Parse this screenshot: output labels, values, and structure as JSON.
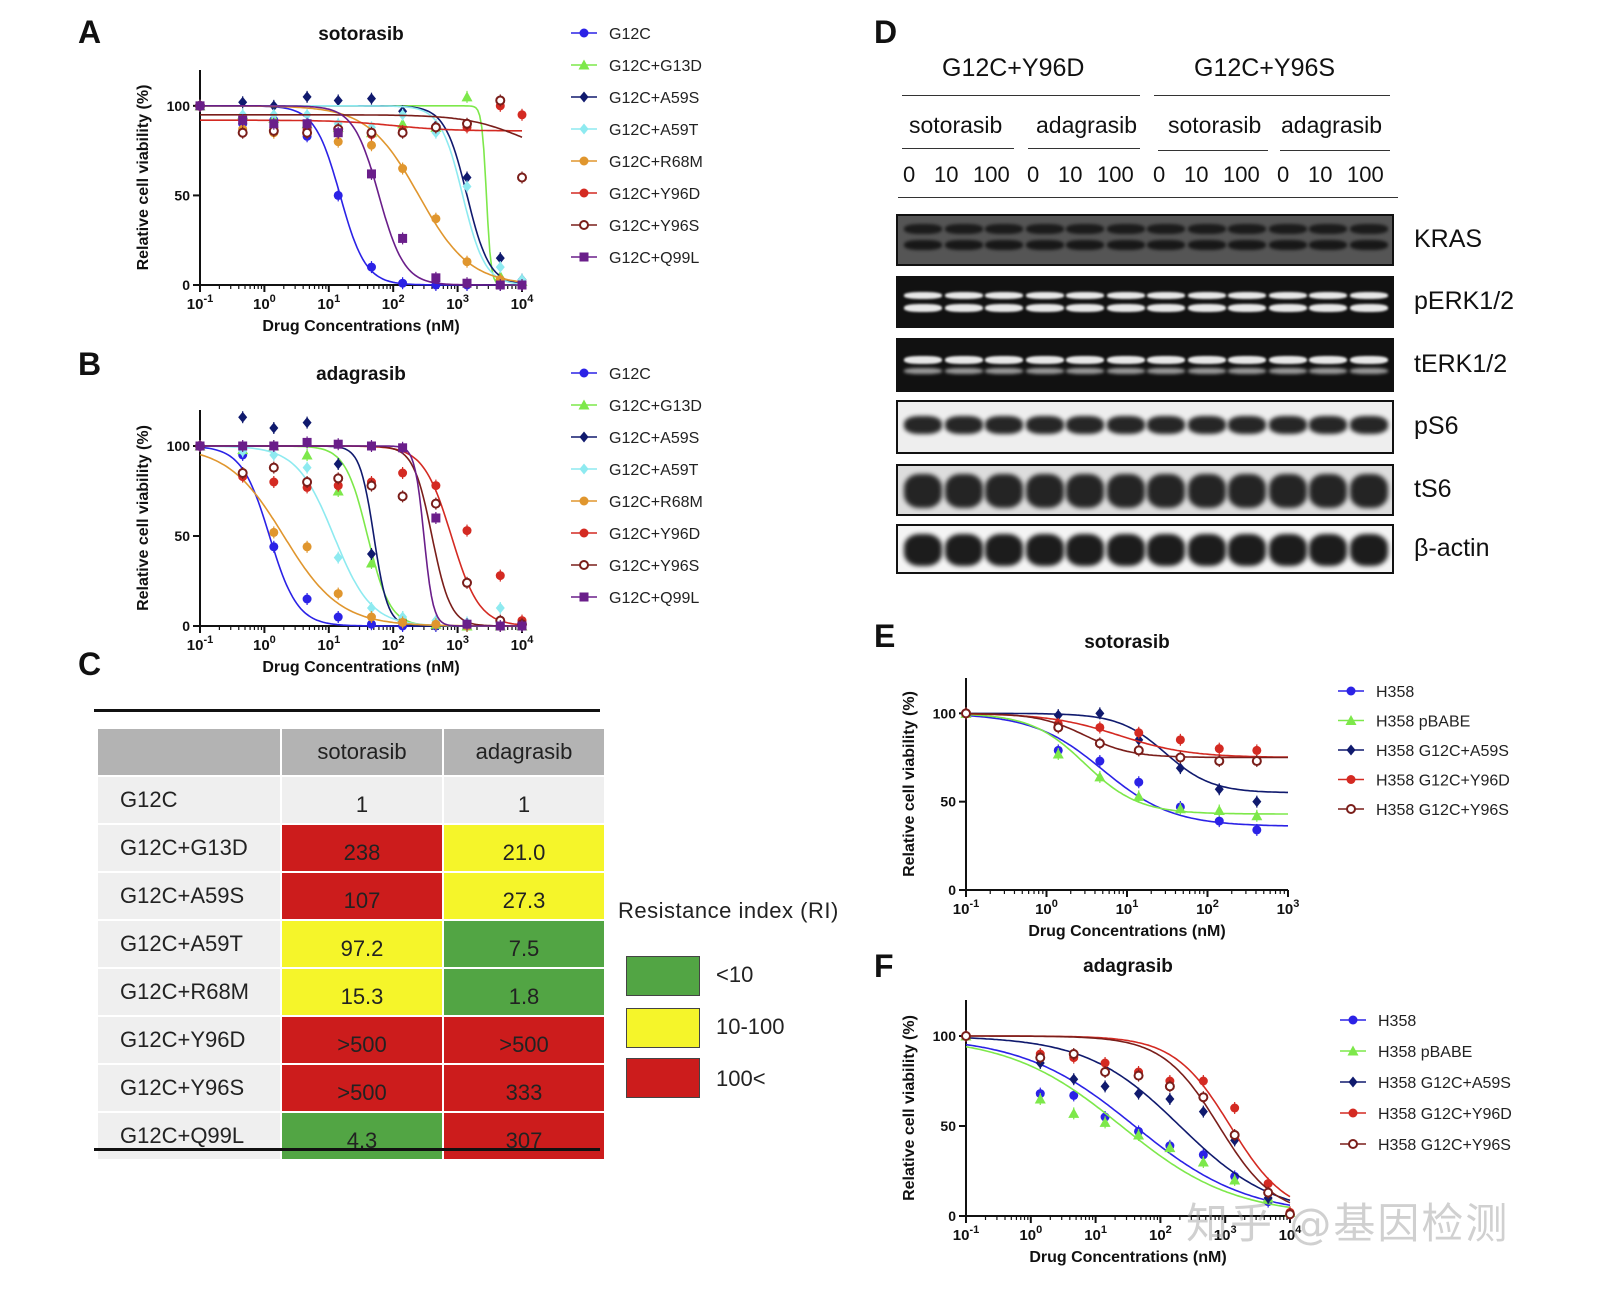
{
  "panels": {
    "A": "A",
    "B": "B",
    "C": "C",
    "D": "D",
    "E": "E",
    "F": "F"
  },
  "colors": {
    "G12C": "#2b22e6",
    "G12C+G13D": "#7de84a",
    "G12C+A59S": "#101a6e",
    "G12C+A59T": "#8eeaf0",
    "G12C+R68M": "#e0962e",
    "G12C+Y96D": "#d42a22",
    "G12C+Y96S": "#7a1e1a",
    "G12C+Q99L": "#6a1e8a",
    "H358": "#2b22e6",
    "H358 pBABE": "#7de84a",
    "H358 G12C+A59S": "#101a6e",
    "H358 G12C+Y96D": "#d42a22",
    "H358 G12C+Y96S": "#7a1e1a",
    "ri_green": "#52a544",
    "ri_yellow": "#f5f52a",
    "ri_red": "#cc1c1c"
  },
  "chart_data": [
    {
      "id": "A",
      "type": "line",
      "title": "sotorasib",
      "xlabel": "Drug Concentrations (nM)",
      "ylabel": "Relative cell viability (%)",
      "xscale": "log",
      "xlim": [
        0.1,
        10000
      ],
      "ylim": [
        0,
        120
      ],
      "xticks": [
        0.1,
        1,
        10,
        100,
        1000,
        10000
      ],
      "yticks": [
        0,
        50,
        100
      ],
      "legend_position": "right",
      "series": [
        {
          "name": "G12C",
          "marker": "circle",
          "top": 100,
          "bottom": 0,
          "ic50": 15,
          "hill": 2.2,
          "x": [
            0.1,
            0.46,
            1.4,
            4.6,
            14,
            46,
            140,
            460,
            1400,
            4600,
            10000
          ],
          "y": [
            100,
            90,
            92,
            83,
            50,
            10,
            1,
            0,
            0,
            0,
            0
          ]
        },
        {
          "name": "G12C+G13D",
          "marker": "triangle",
          "top": 100,
          "bottom": 0,
          "ic50": 2800,
          "hill": 12,
          "x": [
            0.1,
            0.46,
            1.4,
            4.6,
            14,
            46,
            140,
            460,
            1400,
            4600,
            10000
          ],
          "y": [
            100,
            95,
            93,
            90,
            88,
            85,
            90,
            88,
            105,
            5,
            2
          ]
        },
        {
          "name": "G12C+A59S",
          "marker": "diamond",
          "top": 100,
          "bottom": 0,
          "ic50": 1400,
          "hill": 2.5,
          "x": [
            0.1,
            0.46,
            1.4,
            4.6,
            14,
            46,
            140,
            460,
            1400,
            4600,
            10000
          ],
          "y": [
            100,
            102,
            100,
            105,
            103,
            104,
            97,
            89,
            60,
            15,
            3
          ]
        },
        {
          "name": "G12C+A59T",
          "marker": "diamond",
          "top": 100,
          "bottom": 0,
          "ic50": 1200,
          "hill": 2.5,
          "x": [
            0.1,
            0.46,
            1.4,
            4.6,
            14,
            46,
            140,
            460,
            1400,
            4600,
            10000
          ],
          "y": [
            100,
            95,
            95,
            95,
            90,
            88,
            95,
            85,
            55,
            10,
            3
          ]
        },
        {
          "name": "G12C+R68M",
          "marker": "circle",
          "top": 100,
          "bottom": 0,
          "ic50": 250,
          "hill": 1.1,
          "x": [
            0.1,
            0.46,
            1.4,
            4.6,
            14,
            46,
            140,
            460,
            1400,
            4600,
            10000
          ],
          "y": [
            100,
            87,
            85,
            85,
            80,
            78,
            65,
            37,
            13,
            3,
            0
          ]
        },
        {
          "name": "G12C+Y96D",
          "marker": "circle",
          "top": 92,
          "bottom": 86,
          "ic50": 100,
          "hill": 1,
          "x": [
            0.1,
            0.46,
            1.4,
            4.6,
            14,
            46,
            140,
            460,
            1400,
            4600,
            10000
          ],
          "y": [
            100,
            92,
            88,
            87,
            85,
            84,
            86,
            88,
            88,
            100,
            95
          ]
        },
        {
          "name": "G12C+Y96S",
          "marker": "open-circle",
          "top": 95,
          "bottom": 70,
          "ic50": 10000,
          "hill": 1,
          "x": [
            0.1,
            0.46,
            1.4,
            4.6,
            14,
            46,
            140,
            460,
            1400,
            4600,
            10000
          ],
          "y": [
            100,
            85,
            86,
            85,
            87,
            85,
            85,
            88,
            90,
            103,
            60
          ]
        },
        {
          "name": "G12C+Q99L",
          "marker": "square",
          "top": 100,
          "bottom": 0,
          "ic50": 60,
          "hill": 2.2,
          "x": [
            0.1,
            0.46,
            1.4,
            4.6,
            14,
            46,
            140,
            460,
            1400,
            4600,
            10000
          ],
          "y": [
            100,
            92,
            90,
            90,
            85,
            62,
            26,
            4,
            1,
            0,
            0
          ]
        }
      ]
    },
    {
      "id": "B",
      "type": "line",
      "title": "adagrasib",
      "xlabel": "Drug Concentrations (nM)",
      "ylabel": "Relative cell viability (%)",
      "xscale": "log",
      "xlim": [
        0.1,
        10000
      ],
      "ylim": [
        0,
        120
      ],
      "xticks": [
        0.1,
        1,
        10,
        100,
        1000,
        10000
      ],
      "yticks": [
        0,
        50,
        100
      ],
      "legend_position": "right",
      "series": [
        {
          "name": "G12C",
          "marker": "circle",
          "top": 100,
          "bottom": 0,
          "ic50": 1.2,
          "hill": 2,
          "x": [
            0.1,
            0.46,
            1.4,
            4.6,
            14,
            46,
            140,
            460,
            1400,
            4600,
            10000
          ],
          "y": [
            100,
            95,
            44,
            15,
            5,
            1,
            0,
            0,
            0,
            0,
            0
          ]
        },
        {
          "name": "G12C+G13D",
          "marker": "triangle",
          "top": 100,
          "bottom": 0,
          "ic50": 40,
          "hill": 2.5,
          "x": [
            0.1,
            0.46,
            1.4,
            4.6,
            14,
            46,
            140,
            460,
            1400,
            4600,
            10000
          ],
          "y": [
            100,
            98,
            100,
            95,
            75,
            35,
            5,
            1,
            0,
            0,
            0
          ]
        },
        {
          "name": "G12C+A59S",
          "marker": "diamond",
          "top": 100,
          "bottom": 0,
          "ic50": 50,
          "hill": 4,
          "x": [
            0.1,
            0.46,
            1.4,
            4.6,
            14,
            46,
            140,
            460,
            1400,
            4600,
            10000
          ],
          "y": [
            100,
            116,
            110,
            113,
            90,
            40,
            3,
            1,
            0,
            0,
            0
          ]
        },
        {
          "name": "G12C+A59T",
          "marker": "diamond",
          "top": 100,
          "bottom": 0,
          "ic50": 12,
          "hill": 1.5,
          "x": [
            0.1,
            0.46,
            1.4,
            4.6,
            14,
            46,
            140,
            460,
            1400,
            4600,
            10000
          ],
          "y": [
            100,
            97,
            95,
            88,
            38,
            10,
            5,
            3,
            2,
            10,
            2
          ]
        },
        {
          "name": "G12C+R68M",
          "marker": "circle",
          "top": 100,
          "bottom": 0,
          "ic50": 2,
          "hill": 1,
          "x": [
            0.1,
            0.46,
            1.4,
            4.6,
            14,
            46,
            140,
            460,
            1400,
            4600,
            10000
          ],
          "y": [
            100,
            85,
            52,
            44,
            18,
            5,
            2,
            1,
            0,
            0,
            0
          ]
        },
        {
          "name": "G12C+Y96D",
          "marker": "circle",
          "top": 100,
          "bottom": 0,
          "ic50": 800,
          "hill": 2,
          "x": [
            0.1,
            0.46,
            1.4,
            4.6,
            14,
            46,
            140,
            460,
            1400,
            4600,
            10000
          ],
          "y": [
            100,
            83,
            80,
            77,
            78,
            80,
            85,
            78,
            53,
            28,
            3
          ]
        },
        {
          "name": "G12C+Y96S",
          "marker": "open-circle",
          "top": 100,
          "bottom": 0,
          "ic50": 400,
          "hill": 3,
          "x": [
            0.1,
            0.46,
            1.4,
            4.6,
            14,
            46,
            140,
            460,
            1400,
            4600,
            10000
          ],
          "y": [
            100,
            85,
            88,
            80,
            82,
            78,
            72,
            68,
            24,
            3,
            1
          ]
        },
        {
          "name": "G12C+Q99L",
          "marker": "square",
          "top": 100,
          "bottom": 0,
          "ic50": 300,
          "hill": 6,
          "x": [
            0.1,
            0.46,
            1.4,
            4.6,
            14,
            46,
            140,
            460,
            1400,
            4600,
            10000
          ],
          "y": [
            100,
            100,
            100,
            102,
            101,
            100,
            99,
            60,
            1,
            0,
            0
          ]
        }
      ]
    },
    {
      "id": "E",
      "type": "line",
      "title": "sotorasib",
      "xlabel": "Drug Concentrations (nM)",
      "ylabel": "Relative cell viability (%)",
      "xscale": "log",
      "xlim": [
        0.1,
        1000
      ],
      "ylim": [
        0,
        120
      ],
      "xticks": [
        0.1,
        1,
        10,
        100,
        1000
      ],
      "yticks": [
        0,
        50,
        100
      ],
      "legend_position": "right",
      "series": [
        {
          "name": "H358",
          "marker": "circle",
          "top": 100,
          "bottom": 36,
          "ic50": 5,
          "hill": 1,
          "x": [
            0.1,
            1.4,
            4.6,
            14,
            46,
            140,
            410
          ],
          "y": [
            100,
            79,
            73,
            61,
            47,
            39,
            34
          ]
        },
        {
          "name": "H358 pBABE",
          "marker": "triangle",
          "top": 100,
          "bottom": 43,
          "ic50": 3,
          "hill": 1.3,
          "x": [
            0.1,
            1.4,
            4.6,
            14,
            46,
            140,
            410
          ],
          "y": [
            100,
            77,
            64,
            53,
            46,
            45,
            42
          ]
        },
        {
          "name": "H358 G12C+A59S",
          "marker": "diamond",
          "top": 100,
          "bottom": 55,
          "ic50": 30,
          "hill": 1.5,
          "x": [
            0.1,
            1.4,
            4.6,
            14,
            46,
            140,
            410
          ],
          "y": [
            100,
            99,
            100,
            85,
            69,
            57,
            50
          ]
        },
        {
          "name": "H358 G12C+Y96D",
          "marker": "circle",
          "top": 100,
          "bottom": 75,
          "ic50": 8,
          "hill": 1,
          "x": [
            0.1,
            1.4,
            4.6,
            14,
            46,
            140,
            410
          ],
          "y": [
            100,
            94,
            92,
            89,
            85,
            80,
            79
          ]
        },
        {
          "name": "H358 G12C+Y96S",
          "marker": "open-circle",
          "top": 100,
          "bottom": 75,
          "ic50": 3,
          "hill": 1.5,
          "x": [
            0.1,
            1.4,
            4.6,
            14,
            46,
            140,
            410
          ],
          "y": [
            100,
            92,
            83,
            79,
            75,
            73,
            73
          ]
        }
      ]
    },
    {
      "id": "F",
      "type": "line",
      "title": "adagrasib",
      "xlabel": "Drug Concentrations (nM)",
      "ylabel": "Relative cell viability (%)",
      "xscale": "log",
      "xlim": [
        0.1,
        10000
      ],
      "ylim": [
        0,
        120
      ],
      "xticks": [
        0.1,
        1,
        10,
        100,
        1000,
        10000
      ],
      "yticks": [
        0,
        50,
        100
      ],
      "legend_position": "right",
      "series": [
        {
          "name": "H358",
          "marker": "circle",
          "top": 100,
          "bottom": 0,
          "ic50": 40,
          "hill": 0.5,
          "x": [
            0.1,
            1.4,
            4.6,
            14,
            46,
            140,
            460,
            1400,
            4600,
            10000
          ],
          "y": [
            100,
            68,
            67,
            55,
            47,
            39,
            34,
            22,
            8,
            1
          ]
        },
        {
          "name": "H358 pBABE",
          "marker": "triangle",
          "top": 100,
          "bottom": 0,
          "ic50": 25,
          "hill": 0.5,
          "x": [
            0.1,
            1.4,
            4.6,
            14,
            46,
            140,
            460,
            1400,
            4600,
            10000
          ],
          "y": [
            100,
            65,
            57,
            52,
            45,
            38,
            30,
            20,
            10,
            2
          ]
        },
        {
          "name": "H358 G12C+A59S",
          "marker": "diamond",
          "top": 100,
          "bottom": 0,
          "ic50": 200,
          "hill": 0.6,
          "x": [
            0.1,
            1.4,
            4.6,
            14,
            46,
            140,
            460,
            1400,
            4600,
            10000
          ],
          "y": [
            100,
            85,
            76,
            72,
            68,
            65,
            58,
            42,
            10,
            1
          ]
        },
        {
          "name": "H358 G12C+Y96D",
          "marker": "circle",
          "top": 100,
          "bottom": 0,
          "ic50": 1200,
          "hill": 1,
          "x": [
            0.1,
            1.4,
            4.6,
            14,
            46,
            140,
            460,
            1400,
            4600,
            10000
          ],
          "y": [
            100,
            90,
            88,
            85,
            80,
            75,
            75,
            60,
            18,
            2
          ]
        },
        {
          "name": "H358 G12C+Y96S",
          "marker": "open-circle",
          "top": 100,
          "bottom": 0,
          "ic50": 800,
          "hill": 1,
          "x": [
            0.1,
            1.4,
            4.6,
            14,
            46,
            140,
            460,
            1400,
            4600,
            10000
          ],
          "y": [
            100,
            88,
            90,
            80,
            78,
            72,
            66,
            45,
            13,
            1
          ]
        }
      ]
    },
    {
      "id": "C",
      "type": "table",
      "columns": [
        "",
        "sotorasib",
        "adagrasib"
      ],
      "rows": [
        {
          "name": "G12C",
          "sotorasib": "1",
          "adagrasib": "1",
          "s_class": "none",
          "a_class": "none"
        },
        {
          "name": "G12C+G13D",
          "sotorasib": "238",
          "adagrasib": "21.0",
          "s_class": "red",
          "a_class": "yellow"
        },
        {
          "name": "G12C+A59S",
          "sotorasib": "107",
          "adagrasib": "27.3",
          "s_class": "red",
          "a_class": "yellow"
        },
        {
          "name": "G12C+A59T",
          "sotorasib": "97.2",
          "adagrasib": "7.5",
          "s_class": "yellow",
          "a_class": "green"
        },
        {
          "name": "G12C+R68M",
          "sotorasib": "15.3",
          "adagrasib": "1.8",
          "s_class": "yellow",
          "a_class": "green"
        },
        {
          "name": "G12C+Y96D",
          "sotorasib": ">500",
          "adagrasib": ">500",
          "s_class": "red",
          "a_class": "red"
        },
        {
          "name": "G12C+Y96S",
          "sotorasib": ">500",
          "adagrasib": "333",
          "s_class": "red",
          "a_class": "red"
        },
        {
          "name": "G12C+Q99L",
          "sotorasib": "4.3",
          "adagrasib": "307",
          "s_class": "green",
          "a_class": "red"
        }
      ],
      "legend_title": "Resistance index (RI)",
      "legend": [
        {
          "label": "<10",
          "class": "green"
        },
        {
          "label": "10-100",
          "class": "yellow"
        },
        {
          "label": "100<",
          "class": "red"
        }
      ]
    }
  ],
  "western": {
    "groups": [
      "G12C+Y96D",
      "G12C+Y96S"
    ],
    "drugs": [
      "sotorasib",
      "adagrasib",
      "sotorasib",
      "adagrasib"
    ],
    "doses": [
      "0",
      "10",
      "100",
      "0",
      "10",
      "100",
      "0",
      "10",
      "100",
      "0",
      "10",
      "100"
    ],
    "bands": [
      "KRAS",
      "pERK1/2",
      "tERK1/2",
      "pS6",
      "tS6",
      "β-actin"
    ]
  },
  "watermark": "知乎 @基因检测"
}
